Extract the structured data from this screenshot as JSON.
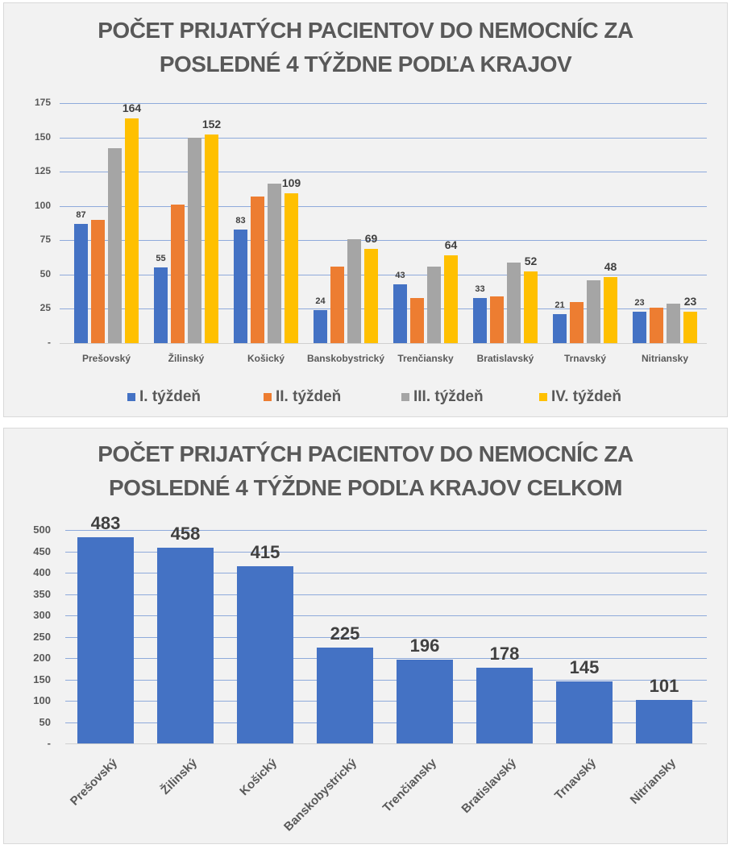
{
  "chart_data": [
    {
      "type": "bar",
      "title": "POČET PRIJATÝCH PACIENTOV DO NEMOCNÍC ZA POSLEDNÉ 4 TÝŽDNE PODĽA KRAJOV",
      "title_lines": [
        "POČET PRIJATÝCH PACIENTOV DO NEMOCNÍC ZA",
        "POSLEDNÉ 4 TÝŽDNE PODĽA KRAJOV"
      ],
      "categories": [
        "Prešovský",
        "Žilinský",
        "Košický",
        "Banskobystrický",
        "Trenčiansky",
        "Bratislavský",
        "Trnavský",
        "Nitriansky"
      ],
      "series": [
        {
          "name": "I. týždeň",
          "color": "#4472c4",
          "values": [
            87,
            55,
            83,
            24,
            43,
            33,
            21,
            23
          ],
          "labeled": true
        },
        {
          "name": "II. týždeň",
          "color": "#ed7d31",
          "values": [
            90,
            101,
            107,
            56,
            33,
            34,
            30,
            26
          ],
          "labeled": false
        },
        {
          "name": "III. týždeň",
          "color": "#a5a5a5",
          "values": [
            142,
            150,
            116,
            76,
            56,
            59,
            46,
            29
          ],
          "labeled": false
        },
        {
          "name": "IV. týždeň",
          "color": "#ffc000",
          "values": [
            164,
            152,
            109,
            69,
            64,
            52,
            48,
            23
          ],
          "labeled": true
        }
      ],
      "yticks": [
        "-",
        "25",
        "50",
        "75",
        "100",
        "125",
        "150",
        "175"
      ],
      "ylim": [
        0,
        175
      ],
      "xlabel": "",
      "ylabel": "",
      "grid": true,
      "legend_position": "bottom"
    },
    {
      "type": "bar",
      "title": "POČET PRIJATÝCH PACIENTOV DO NEMOCNÍC ZA POSLEDNÉ 4 TÝŽDNE PODĽA KRAJOV CELKOM",
      "title_lines": [
        "POČET PRIJATÝCH PACIENTOV DO NEMOCNÍC ZA",
        "POSLEDNÉ 4 TÝŽDNE PODĽA KRAJOV CELKOM"
      ],
      "categories": [
        "Prešovský",
        "Žilinský",
        "Košický",
        "Banskobystrický",
        "Trenčiansky",
        "Bratislavský",
        "Trnavský",
        "Nitriansky"
      ],
      "values": [
        483,
        458,
        415,
        225,
        196,
        178,
        145,
        101
      ],
      "color": "#4472c4",
      "yticks": [
        "-",
        "50",
        "100",
        "150",
        "200",
        "250",
        "300",
        "350",
        "400",
        "450",
        "500"
      ],
      "ylim": [
        0,
        500
      ],
      "xlabel": "",
      "ylabel": "",
      "grid": true,
      "x_label_rotation": -45
    }
  ]
}
